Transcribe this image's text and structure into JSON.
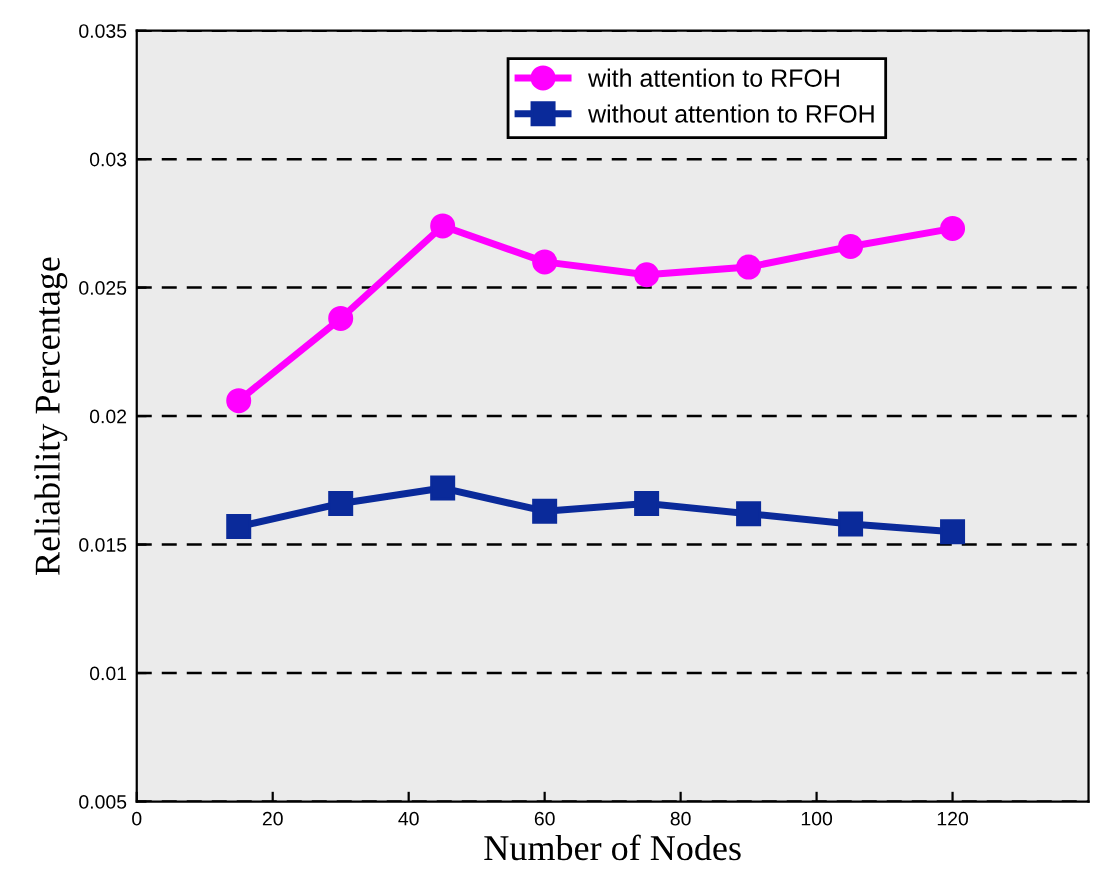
{
  "chart_data": {
    "type": "line",
    "xlabel": "Number of Nodes",
    "ylabel": "Reliability Percentage",
    "x": [
      15,
      30,
      45,
      60,
      75,
      90,
      105,
      120
    ],
    "series": [
      {
        "name": "with attention to RFOH",
        "color": "#ff00ff",
        "marker": "circle",
        "values": [
          0.0206,
          0.0238,
          0.0274,
          0.026,
          0.0255,
          0.0258,
          0.0266,
          0.0273
        ]
      },
      {
        "name": "without attention to RFOH",
        "color": "#0a2a9a",
        "marker": "square",
        "values": [
          0.0157,
          0.0166,
          0.0172,
          0.0163,
          0.0166,
          0.0162,
          0.0158,
          0.0155
        ]
      }
    ],
    "xlim": [
      0,
      140
    ],
    "xticks": [
      0,
      20,
      40,
      60,
      80,
      100,
      120
    ],
    "ylim": [
      0.005,
      0.035
    ],
    "yticks": [
      0.005,
      0.01,
      0.015,
      0.02,
      0.025,
      0.03,
      0.035
    ],
    "grid": "y",
    "legend": "top right",
    "line_style": "solid"
  }
}
